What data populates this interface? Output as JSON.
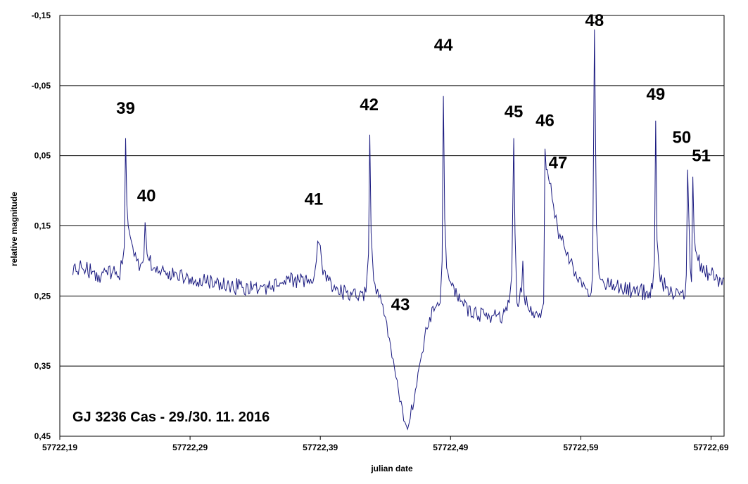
{
  "chart_data": {
    "type": "line",
    "title": "GJ 3236 Cas - 29./30. 11. 2016",
    "xlabel": "julian date",
    "ylabel": "relative magnitude",
    "xlim": [
      57722.19,
      57722.7
    ],
    "ylim": [
      -0.15,
      0.45
    ],
    "y_inverted": true,
    "grid": "horizontal",
    "x_ticks": [
      "57722,19",
      "57722,29",
      "57722,39",
      "57722,49",
      "57722,59",
      "57722,69"
    ],
    "y_ticks": [
      "-0,15",
      "-0,05",
      "0,05",
      "0,15",
      "0,25",
      "0,35",
      "0,45"
    ],
    "line_color": "#1a1a80",
    "series": [
      {
        "values": [
          [
            57722.2,
            0.22
          ],
          [
            57722.205,
            0.208
          ],
          [
            57722.21,
            0.212
          ],
          [
            57722.215,
            0.215
          ],
          [
            57722.22,
            0.22
          ],
          [
            57722.225,
            0.215
          ],
          [
            57722.23,
            0.218
          ],
          [
            57722.235,
            0.222
          ],
          [
            57722.238,
            0.205
          ],
          [
            57722.2395,
            0.18
          ],
          [
            57722.2405,
            0.025
          ],
          [
            57722.2415,
            0.12
          ],
          [
            57722.2425,
            0.15
          ],
          [
            57722.244,
            0.165
          ],
          [
            57722.246,
            0.18
          ],
          [
            57722.249,
            0.2
          ],
          [
            57722.252,
            0.205
          ],
          [
            57722.2545,
            0.195
          ],
          [
            57722.2555,
            0.145
          ],
          [
            57722.257,
            0.19
          ],
          [
            57722.262,
            0.21
          ],
          [
            57722.27,
            0.215
          ],
          [
            57722.28,
            0.22
          ],
          [
            57722.29,
            0.225
          ],
          [
            57722.3,
            0.228
          ],
          [
            57722.31,
            0.232
          ],
          [
            57722.32,
            0.235
          ],
          [
            57722.33,
            0.238
          ],
          [
            57722.34,
            0.235
          ],
          [
            57722.35,
            0.238
          ],
          [
            57722.36,
            0.232
          ],
          [
            57722.37,
            0.228
          ],
          [
            57722.38,
            0.232
          ],
          [
            57722.385,
            0.225
          ],
          [
            57722.387,
            0.2
          ],
          [
            57722.388,
            0.172
          ],
          [
            57722.39,
            0.178
          ],
          [
            57722.392,
            0.22
          ],
          [
            57722.4,
            0.24
          ],
          [
            57722.41,
            0.245
          ],
          [
            57722.42,
            0.248
          ],
          [
            57722.425,
            0.245
          ],
          [
            57722.427,
            0.19
          ],
          [
            57722.428,
            0.02
          ],
          [
            57722.429,
            0.16
          ],
          [
            57722.431,
            0.228
          ],
          [
            57722.434,
            0.24
          ],
          [
            57722.437,
            0.26
          ],
          [
            57722.44,
            0.28
          ],
          [
            57722.443,
            0.31
          ],
          [
            57722.446,
            0.34
          ],
          [
            57722.449,
            0.37
          ],
          [
            57722.452,
            0.4
          ],
          [
            57722.455,
            0.43
          ],
          [
            57722.457,
            0.44
          ],
          [
            57722.459,
            0.425
          ],
          [
            57722.462,
            0.4
          ],
          [
            57722.466,
            0.35
          ],
          [
            57722.47,
            0.31
          ],
          [
            57722.474,
            0.28
          ],
          [
            57722.479,
            0.265
          ],
          [
            57722.482,
            0.26
          ],
          [
            57722.4835,
            0.2
          ],
          [
            57722.4845,
            -0.035
          ],
          [
            57722.4855,
            0.14
          ],
          [
            57722.487,
            0.21
          ],
          [
            57722.49,
            0.23
          ],
          [
            57722.495,
            0.25
          ],
          [
            57722.5,
            0.265
          ],
          [
            57722.51,
            0.275
          ],
          [
            57722.52,
            0.28
          ],
          [
            57722.53,
            0.28
          ],
          [
            57722.535,
            0.26
          ],
          [
            57722.537,
            0.22
          ],
          [
            57722.5385,
            0.025
          ],
          [
            57722.5395,
            0.16
          ],
          [
            57722.541,
            0.26
          ],
          [
            57722.5445,
            0.245
          ],
          [
            57722.5455,
            0.2
          ],
          [
            57722.5465,
            0.25
          ],
          [
            57722.55,
            0.27
          ],
          [
            57722.555,
            0.275
          ],
          [
            57722.56,
            0.27
          ],
          [
            57722.5615,
            0.26
          ],
          [
            57722.5625,
            0.04
          ],
          [
            57722.5635,
            0.07
          ],
          [
            57722.566,
            0.09
          ],
          [
            57722.569,
            0.12
          ],
          [
            57722.572,
            0.15
          ],
          [
            57722.575,
            0.17
          ],
          [
            57722.578,
            0.185
          ],
          [
            57722.582,
            0.2
          ],
          [
            57722.586,
            0.215
          ],
          [
            57722.59,
            0.225
          ],
          [
            57722.594,
            0.24
          ],
          [
            57722.598,
            0.245
          ],
          [
            57722.599,
            0.22
          ],
          [
            57722.6005,
            -0.13
          ],
          [
            57722.602,
            0.15
          ],
          [
            57722.604,
            0.22
          ],
          [
            57722.61,
            0.235
          ],
          [
            57722.62,
            0.24
          ],
          [
            57722.63,
            0.242
          ],
          [
            57722.64,
            0.245
          ],
          [
            57722.645,
            0.24
          ],
          [
            57722.6465,
            0.2
          ],
          [
            57722.6475,
            0.0
          ],
          [
            57722.6485,
            0.17
          ],
          [
            57722.651,
            0.23
          ],
          [
            57722.66,
            0.245
          ],
          [
            57722.67,
            0.25
          ],
          [
            57722.671,
            0.22
          ],
          [
            57722.672,
            0.07
          ],
          [
            57722.673,
            0.14
          ],
          [
            57722.674,
            0.21
          ],
          [
            57722.675,
            0.23
          ],
          [
            57722.676,
            0.08
          ],
          [
            57722.677,
            0.16
          ],
          [
            57722.68,
            0.2
          ],
          [
            57722.685,
            0.215
          ],
          [
            57722.69,
            0.22
          ],
          [
            57722.695,
            0.225
          ],
          [
            57722.7,
            0.225
          ]
        ]
      }
    ],
    "annotations": [
      {
        "text": "39",
        "x": 57722.2405,
        "y": -0.01
      },
      {
        "text": "40",
        "x": 57722.2565,
        "y": 0.115
      },
      {
        "text": "41",
        "x": 57722.385,
        "y": 0.12
      },
      {
        "text": "42",
        "x": 57722.4275,
        "y": -0.015
      },
      {
        "text": "43",
        "x": 57722.4515,
        "y": 0.27
      },
      {
        "text": "44",
        "x": 57722.4845,
        "y": -0.1
      },
      {
        "text": "45",
        "x": 57722.5385,
        "y": -0.005
      },
      {
        "text": "46",
        "x": 57722.5625,
        "y": 0.008
      },
      {
        "text": "47",
        "x": 57722.5725,
        "y": 0.068
      },
      {
        "text": "48",
        "x": 57722.6005,
        "y": -0.135
      },
      {
        "text": "49",
        "x": 57722.6475,
        "y": -0.03
      },
      {
        "text": "50",
        "x": 57722.6675,
        "y": 0.032
      },
      {
        "text": "51",
        "x": 57722.6825,
        "y": 0.058
      }
    ]
  }
}
